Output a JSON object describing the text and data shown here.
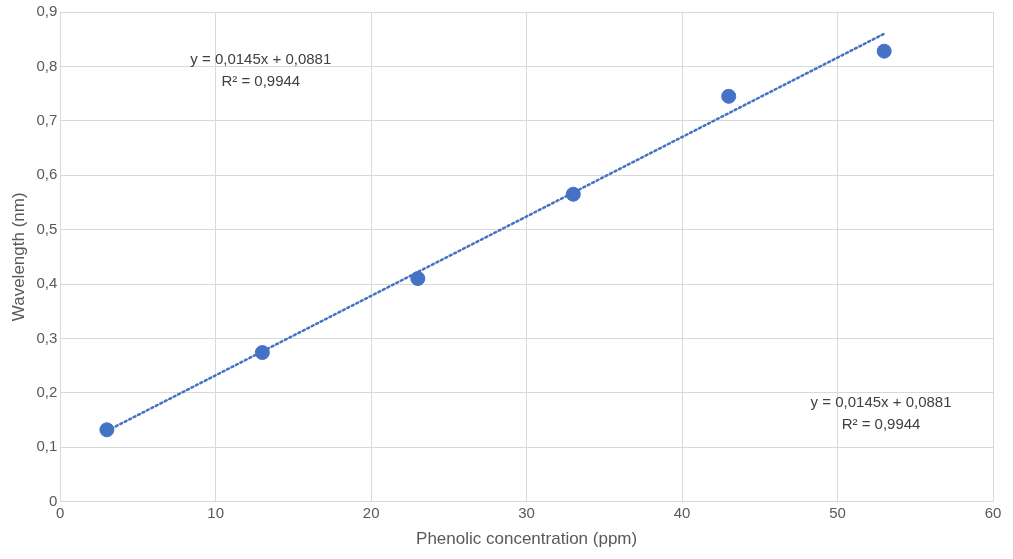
{
  "chart_data": {
    "type": "scatter",
    "xlabel": "Phenolic concentration (ppm)",
    "ylabel": "Wavelength (nm)",
    "x": [
      3,
      13,
      23,
      33,
      43,
      53
    ],
    "series": [
      {
        "color": "#4472c4",
        "marker": "circle",
        "values": [
          0.132,
          0.274,
          0.41,
          0.565,
          0.745,
          0.828
        ]
      },
      {
        "type": "line",
        "color": "#4472c4",
        "line_style": "dotted",
        "marker": "none",
        "x": [
          3,
          53
        ],
        "values": [
          0.13,
          0.86
        ]
      }
    ],
    "xlim": [
      0,
      60
    ],
    "xticks": [
      0,
      10,
      20,
      30,
      40,
      50,
      60
    ],
    "ylim": [
      0,
      0.9
    ],
    "yticks": [
      0,
      {
        "value": 0.1,
        "label": "0,1"
      },
      {
        "value": 0.2,
        "label": "0,2"
      },
      {
        "value": 0.3,
        "label": "0,3"
      },
      {
        "value": 0.4,
        "label": "0,4"
      },
      {
        "value": 0.5,
        "label": "0,5"
      },
      {
        "value": 0.6,
        "label": "0,6"
      },
      {
        "value": 0.7,
        "label": "0,7"
      },
      {
        "value": 0.8,
        "label": "0,8"
      },
      {
        "value": 0.9,
        "label": "0,9"
      }
    ],
    "grid": true,
    "legend": false,
    "annotations": [
      "y = 0,0145x + 0,0881\nR² = 0,9944",
      "y = 0,0145x + 0,0881\nR² = 0,9944"
    ]
  }
}
